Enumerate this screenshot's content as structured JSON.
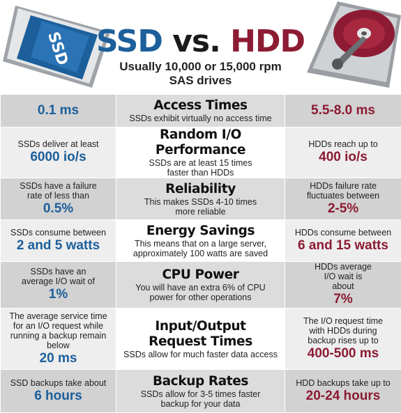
{
  "header": {
    "title_ssd": "SSD",
    "title_vs": " vs. ",
    "title_hdd": "HDD",
    "subtitle_line1": "Usually 10,000 or 15,000 rpm",
    "subtitle_line2": "SAS drives",
    "ssd_label": "SSD"
  },
  "colors": {
    "ssd": "#1c5f9b",
    "hdd": "#8c1b33",
    "row_light": "#eeeeee",
    "row_dark": "#d2d2d2"
  },
  "rows": [
    {
      "ssd_text": "",
      "ssd_value": "0.1 ms",
      "category": "Access Times",
      "desc_line1": "SSDs exhibit virtually no access time",
      "desc_line2": "",
      "hdd_text": "",
      "hdd_value": "5.5-8.0 ms"
    },
    {
      "ssd_text": "SSDs deliver at least",
      "ssd_value": "6000 io/s",
      "category": "Random I/O Performance",
      "desc_line1": "SSDs are at least 15 times",
      "desc_line2": "faster than HDDs",
      "hdd_text": "HDDs reach up to",
      "hdd_value": "400 io/s"
    },
    {
      "ssd_text": "SSDs have a failure rate of less than",
      "ssd_value": "0.5%",
      "category": "Reliability",
      "desc_line1": "This makes SSDs 4-10 times",
      "desc_line2": "more reliable",
      "hdd_text": "HDDs failure rate fluctuates between",
      "hdd_value": "2-5%"
    },
    {
      "ssd_text": "SSDs consume between",
      "ssd_value": "2 and 5 watts",
      "category": "Energy Savings",
      "desc_line1": "This means that on a large server,",
      "desc_line2": "approximately 100 watts are saved",
      "hdd_text": "HDDs consume between",
      "hdd_value": "6 and 15 watts"
    },
    {
      "ssd_text": "SSDs have an average I/O wait of",
      "ssd_value": "1%",
      "category": "CPU Power",
      "desc_line1": "You will have an extra 6% of CPU",
      "desc_line2": "power for other operations",
      "hdd_text": "HDDs average I/O wait is about",
      "hdd_value": "7%"
    },
    {
      "ssd_text": "The average service time for an I/O request while running a backup remain below",
      "ssd_value": "20 ms",
      "category": "Input/Output Request Times",
      "desc_line1": "SSDs allow for much faster data access",
      "desc_line2": "",
      "hdd_text": "The I/O request time with HDDs during backup rises up to",
      "hdd_value": "400-500 ms"
    },
    {
      "ssd_text": "SSD backups take about",
      "ssd_value": "6 hours",
      "category": "Backup Rates",
      "desc_line1": "SSDs allow for 3-5 times faster",
      "desc_line2": "backup for your data",
      "hdd_text": "HDD backups take up to",
      "hdd_value": "20-24 hours"
    }
  ]
}
